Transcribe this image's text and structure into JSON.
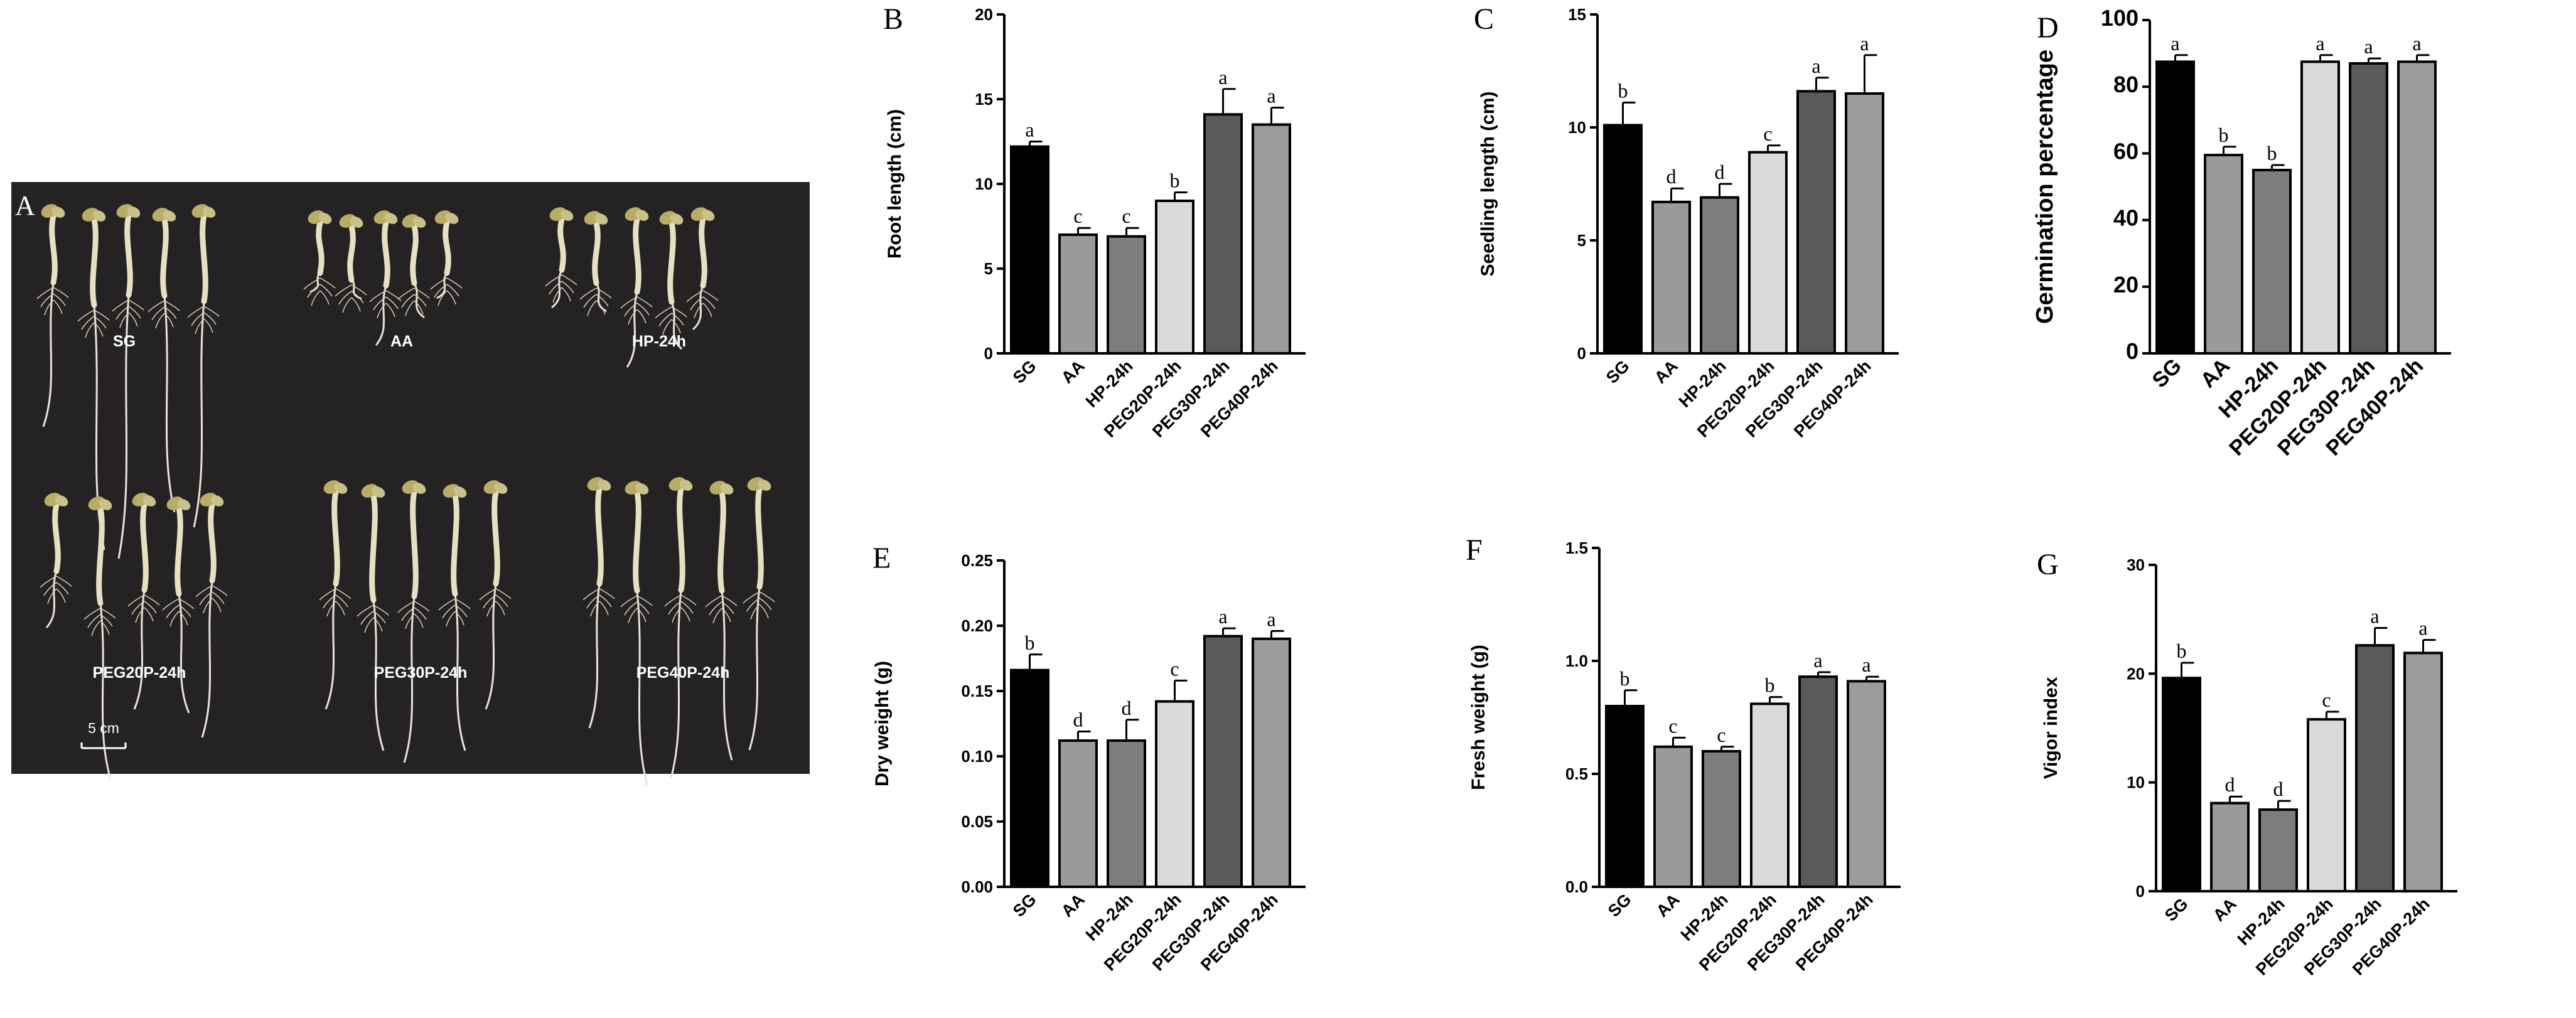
{
  "figure": {
    "photo": {
      "panel_letter": "A",
      "groups": [
        "SG",
        "AA",
        "HP-24h",
        "PEG20P-24h",
        "PEG30P-24h",
        "PEG40P-24h"
      ],
      "scale_bar_label": "5 cm"
    }
  },
  "chart_data": [
    {
      "panel": "B",
      "type": "bar",
      "ylabel": "Root length (cm)",
      "categories": [
        "SG",
        "AA",
        "HP-24h",
        "PEG20P-24h",
        "PEG30P-24h",
        "PEG40P-24h"
      ],
      "values": [
        12.2,
        7.0,
        6.9,
        9.0,
        14.1,
        13.5
      ],
      "errors": [
        0.3,
        0.4,
        0.5,
        0.5,
        1.5,
        1.0
      ],
      "letters": [
        "a",
        "c",
        "c",
        "b",
        "a",
        "a"
      ],
      "ylim": [
        0,
        20
      ],
      "yticks": [
        "0",
        "5",
        "10",
        "15",
        "20"
      ],
      "large_font": false
    },
    {
      "panel": "C",
      "type": "bar",
      "ylabel": "Seedling length (cm)",
      "categories": [
        "SG",
        "AA",
        "HP-24h",
        "PEG20P-24h",
        "PEG30P-24h",
        "PEG40P-24h"
      ],
      "values": [
        10.1,
        6.7,
        6.9,
        8.9,
        11.6,
        11.5
      ],
      "errors": [
        1.0,
        0.6,
        0.6,
        0.3,
        0.6,
        1.7
      ],
      "letters": [
        "b",
        "d",
        "d",
        "c",
        "a",
        "a"
      ],
      "ylim": [
        0,
        15
      ],
      "yticks": [
        "0",
        "5",
        "10",
        "15"
      ],
      "large_font": false
    },
    {
      "panel": "D",
      "type": "bar",
      "ylabel": "Germination percentage",
      "categories": [
        "SG",
        "AA",
        "HP-24h",
        "PEG20P-24h",
        "PEG30P-24h",
        "PEG40P-24h"
      ],
      "values": [
        87.5,
        59.5,
        55.0,
        87.5,
        87.0,
        87.5
      ],
      "errors": [
        2.0,
        2.5,
        1.5,
        2.0,
        1.5,
        2.0
      ],
      "letters": [
        "a",
        "b",
        "b",
        "a",
        "a",
        "a"
      ],
      "ylim": [
        0,
        100
      ],
      "yticks": [
        "0",
        "20",
        "40",
        "60",
        "80",
        "100"
      ],
      "large_font": true
    },
    {
      "panel": "E",
      "type": "bar",
      "ylabel": "Dry weight (g)",
      "categories": [
        "SG",
        "AA",
        "HP-24h",
        "PEG20P-24h",
        "PEG30P-24h",
        "PEG40P-24h"
      ],
      "values": [
        0.166,
        0.112,
        0.112,
        0.142,
        0.192,
        0.19
      ],
      "errors": [
        0.012,
        0.007,
        0.016,
        0.016,
        0.006,
        0.006
      ],
      "letters": [
        "b",
        "d",
        "d",
        "c",
        "a",
        "a"
      ],
      "ylim": [
        0,
        0.25
      ],
      "yticks": [
        "0.00",
        "0.05",
        "0.10",
        "0.15",
        "0.20",
        "0.25"
      ],
      "large_font": false
    },
    {
      "panel": "F",
      "type": "bar",
      "ylabel": "Fresh weight (g)",
      "categories": [
        "SG",
        "AA",
        "HP-24h",
        "PEG20P-24h",
        "PEG30P-24h",
        "PEG40P-24h"
      ],
      "values": [
        0.8,
        0.62,
        0.6,
        0.81,
        0.93,
        0.91
      ],
      "errors": [
        0.07,
        0.04,
        0.02,
        0.03,
        0.02,
        0.02
      ],
      "letters": [
        "b",
        "c",
        "c",
        "b",
        "a",
        "a"
      ],
      "ylim": [
        0,
        1.5
      ],
      "yticks": [
        "0.0",
        "0.5",
        "1.0",
        "1.5"
      ],
      "large_font": false
    },
    {
      "panel": "G",
      "type": "bar",
      "ylabel": "Vigor index",
      "categories": [
        "SG",
        "AA",
        "HP-24h",
        "PEG20P-24h",
        "PEG30P-24h",
        "PEG40P-24h"
      ],
      "values": [
        19.6,
        8.1,
        7.5,
        15.8,
        22.6,
        21.9
      ],
      "errors": [
        1.4,
        0.6,
        0.8,
        0.7,
        1.6,
        1.2
      ],
      "letters": [
        "b",
        "d",
        "d",
        "c",
        "a",
        "a"
      ],
      "ylim": [
        0,
        30
      ],
      "yticks": [
        "0",
        "10",
        "20",
        "30"
      ],
      "large_font": false
    }
  ],
  "style": {
    "bar_colors": [
      "#000000",
      "#9a9a9a",
      "#7d7d7d",
      "#dadada",
      "#5a5a5a",
      "#9b9b9b"
    ],
    "axis_color": "#000000",
    "photo_background": "#252223",
    "seedling_color": "#e6e0c2",
    "cotyledon_color": "#b9ad66"
  }
}
